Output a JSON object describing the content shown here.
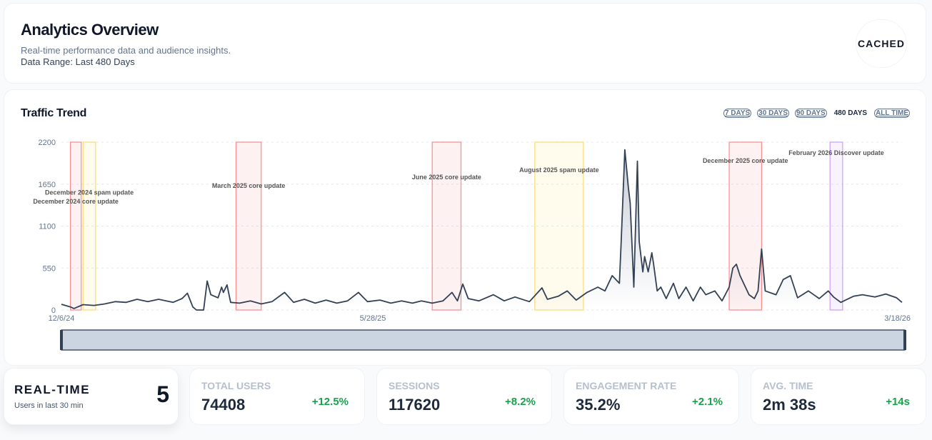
{
  "header": {
    "title": "Analytics Overview",
    "subtitle": "Real-time performance data and audience insights.",
    "range": "Data Range: Last 480 Days",
    "badge": "CACHED"
  },
  "chart_card": {
    "title": "Traffic Trend",
    "ranges": [
      "7 DAYS",
      "30 DAYS",
      "90 DAYS",
      "480 DAYS",
      "ALL TIME"
    ],
    "active_range": "480 DAYS"
  },
  "chart_data": {
    "type": "area",
    "title": "Traffic Trend",
    "ylim": [
      0,
      2200
    ],
    "yticks": [
      "0",
      "550",
      "1100",
      "1650",
      "2200"
    ],
    "xticks": [
      {
        "day": 0,
        "label": "12/6/24"
      },
      {
        "day": 173,
        "label": "5/28/25"
      },
      {
        "day": 467,
        "label": "3/18/26"
      }
    ],
    "xlim": [
      0,
      467
    ],
    "grid": true,
    "points": [
      [
        0,
        75
      ],
      [
        5,
        40
      ],
      [
        7,
        20
      ],
      [
        12,
        70
      ],
      [
        18,
        60
      ],
      [
        24,
        80
      ],
      [
        30,
        110
      ],
      [
        36,
        100
      ],
      [
        42,
        140
      ],
      [
        48,
        110
      ],
      [
        54,
        140
      ],
      [
        62,
        100
      ],
      [
        67,
        150
      ],
      [
        70,
        220
      ],
      [
        73,
        40
      ],
      [
        75,
        0
      ],
      [
        79,
        0
      ],
      [
        81,
        380
      ],
      [
        83,
        200
      ],
      [
        87,
        160
      ],
      [
        89,
        300
      ],
      [
        90,
        230
      ],
      [
        92,
        330
      ],
      [
        94,
        100
      ],
      [
        99,
        90
      ],
      [
        105,
        120
      ],
      [
        111,
        80
      ],
      [
        117,
        110
      ],
      [
        124,
        230
      ],
      [
        129,
        100
      ],
      [
        135,
        140
      ],
      [
        141,
        90
      ],
      [
        147,
        130
      ],
      [
        153,
        90
      ],
      [
        159,
        120
      ],
      [
        165,
        230
      ],
      [
        170,
        110
      ],
      [
        177,
        130
      ],
      [
        183,
        90
      ],
      [
        189,
        120
      ],
      [
        195,
        90
      ],
      [
        200,
        120
      ],
      [
        206,
        90
      ],
      [
        212,
        120
      ],
      [
        217,
        230
      ],
      [
        220,
        120
      ],
      [
        223,
        340
      ],
      [
        226,
        150
      ],
      [
        232,
        120
      ],
      [
        240,
        200
      ],
      [
        246,
        120
      ],
      [
        252,
        170
      ],
      [
        260,
        110
      ],
      [
        267,
        290
      ],
      [
        270,
        140
      ],
      [
        276,
        180
      ],
      [
        281,
        250
      ],
      [
        286,
        130
      ],
      [
        292,
        230
      ],
      [
        298,
        300
      ],
      [
        302,
        250
      ],
      [
        306,
        450
      ],
      [
        310,
        350
      ],
      [
        311,
        900
      ],
      [
        313,
        2100
      ],
      [
        315,
        1600
      ],
      [
        316,
        1400
      ],
      [
        318,
        300
      ],
      [
        320,
        1950
      ],
      [
        321,
        900
      ],
      [
        323,
        500
      ],
      [
        324,
        700
      ],
      [
        326,
        500
      ],
      [
        328,
        750
      ],
      [
        329,
        600
      ],
      [
        331,
        250
      ],
      [
        333,
        300
      ],
      [
        336,
        150
      ],
      [
        340,
        350
      ],
      [
        343,
        150
      ],
      [
        347,
        300
      ],
      [
        351,
        120
      ],
      [
        355,
        300
      ],
      [
        358,
        200
      ],
      [
        363,
        250
      ],
      [
        367,
        120
      ],
      [
        371,
        300
      ],
      [
        373,
        550
      ],
      [
        375,
        600
      ],
      [
        377,
        450
      ],
      [
        382,
        200
      ],
      [
        385,
        150
      ],
      [
        387,
        250
      ],
      [
        389,
        800
      ],
      [
        391,
        250
      ],
      [
        397,
        200
      ],
      [
        401,
        400
      ],
      [
        405,
        450
      ],
      [
        409,
        160
      ],
      [
        415,
        250
      ],
      [
        421,
        150
      ],
      [
        426,
        250
      ],
      [
        429,
        170
      ],
      [
        433,
        100
      ],
      [
        440,
        180
      ],
      [
        445,
        200
      ],
      [
        452,
        170
      ],
      [
        458,
        210
      ],
      [
        464,
        160
      ],
      [
        467,
        100
      ]
    ],
    "annotations": [
      {
        "label": "December 2024 core update",
        "start": 5,
        "end": 11,
        "color": "#f87171",
        "label_y": 1395
      },
      {
        "label": "December 2024 spam update",
        "start": 12,
        "end": 19,
        "color": "#fcd34d",
        "label_y": 1510
      },
      {
        "label": "March 2025 core update",
        "start": 97,
        "end": 111,
        "color": "#f87171",
        "label_y": 1600
      },
      {
        "label": "June 2025 core update",
        "start": 206,
        "end": 222,
        "color": "#f87171",
        "label_y": 1713
      },
      {
        "label": "August 2025 spam update",
        "start": 263,
        "end": 290,
        "color": "#fcd34d",
        "label_y": 1807
      },
      {
        "label": "December 2025 core update",
        "start": 371,
        "end": 389,
        "color": "#f87171",
        "label_y": 1930
      },
      {
        "label": "February 2026 Discover update",
        "start": 427,
        "end": 434,
        "color": "#c084fc",
        "label_y": 2030
      }
    ]
  },
  "realtime": {
    "title": "REAL-TIME",
    "subtitle": "Users in last 30 min",
    "value": "5"
  },
  "stats": [
    {
      "label": "TOTAL USERS",
      "value": "74408",
      "change": "+12.5%"
    },
    {
      "label": "SESSIONS",
      "value": "117620",
      "change": "+8.2%"
    },
    {
      "label": "ENGAGEMENT RATE",
      "value": "35.2%",
      "change": "+2.1%"
    },
    {
      "label": "AVG. TIME",
      "value": "2m 38s",
      "change": "+14s"
    }
  ]
}
